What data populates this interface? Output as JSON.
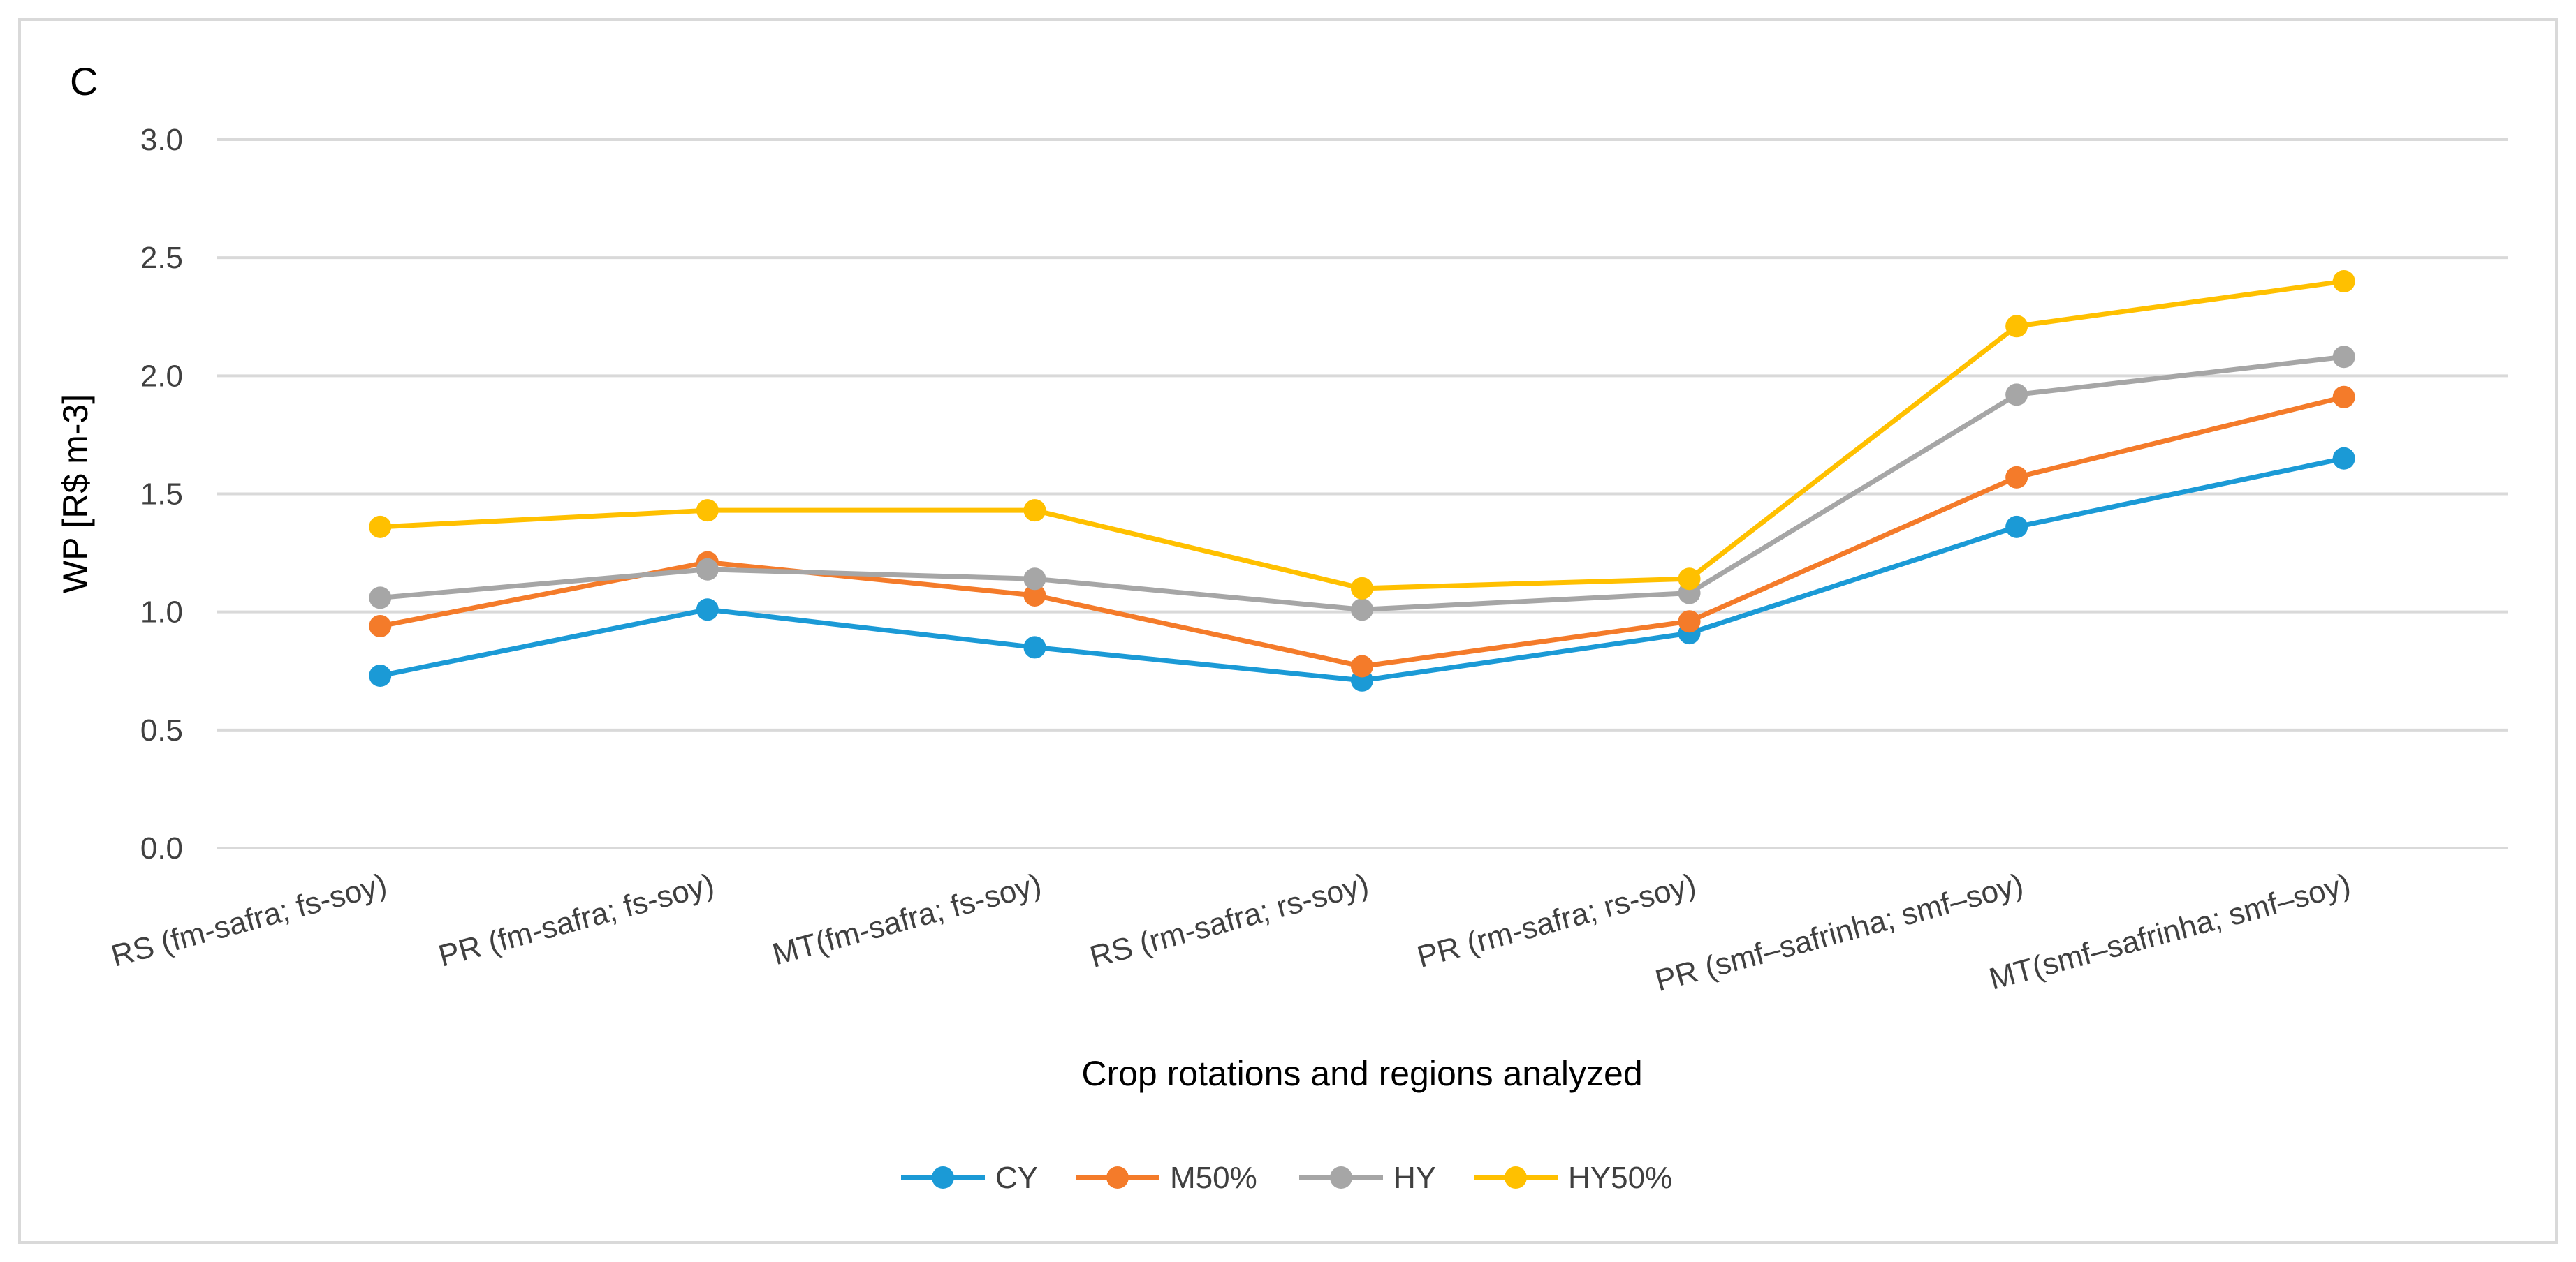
{
  "chart_data": {
    "type": "line",
    "panel_label": "C",
    "title": "",
    "xlabel": "Crop rotations and regions analyzed",
    "ylabel": "WP [R$ m-3]",
    "ylim": [
      0,
      3
    ],
    "yticks": [
      "0.0",
      "0.5",
      "1.0",
      "1.5",
      "2.0",
      "2.5",
      "3.0"
    ],
    "grid": true,
    "legend_position": "bottom",
    "categories": [
      "RS (fm-safra; fs-soy)",
      "PR (fm-safra; fs-soy)",
      "MT(fm-safra; fs-soy)",
      "RS (rm-safra; rs-soy)",
      "PR (rm-safra; rs-soy)",
      "PR (smf–safrinha; smf–soy)",
      "MT(smf–safrinha; smf–soy)"
    ],
    "series": [
      {
        "name": "CY",
        "color": "#1B9AD6",
        "values": [
          0.73,
          1.01,
          0.85,
          0.71,
          0.91,
          1.36,
          1.65
        ]
      },
      {
        "name": "M50%",
        "color": "#F47B2A",
        "values": [
          0.94,
          1.21,
          1.07,
          0.77,
          0.96,
          1.57,
          1.91
        ]
      },
      {
        "name": "HY",
        "color": "#A6A6A6",
        "values": [
          1.06,
          1.18,
          1.14,
          1.01,
          1.08,
          1.92,
          2.08
        ]
      },
      {
        "name": "HY50%",
        "color": "#FFC000",
        "values": [
          1.36,
          1.43,
          1.43,
          1.1,
          1.14,
          2.21,
          2.4
        ]
      }
    ]
  }
}
